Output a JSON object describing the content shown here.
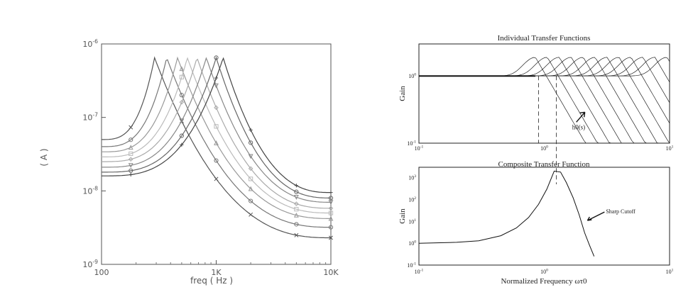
{
  "chart_data": [
    {
      "type": "line",
      "title": "",
      "xlabel": "freq ( Hz )",
      "ylabel": "( A )",
      "xscale": "log",
      "yscale": "log",
      "xlim": [
        100,
        10000
      ],
      "ylim": [
        1e-09,
        1e-06
      ],
      "xticks": [
        "100",
        "1K",
        "10K"
      ],
      "yticks": [
        "10^-9",
        "10^-8",
        "10^-7",
        "10^-6"
      ],
      "grid": false,
      "legend": "none",
      "series": [
        {
          "peak_freq": 290,
          "peak_value": 6.5e-07,
          "low_value": 5e-08,
          "high_value": 2.3e-09,
          "marker": "x",
          "color": "#555555"
        },
        {
          "peak_freq": 370,
          "peak_value": 6.5e-07,
          "low_value": 4e-08,
          "high_value": 3.2e-09,
          "marker": "o",
          "color": "#777777"
        },
        {
          "peak_freq": 460,
          "peak_value": 6.5e-07,
          "low_value": 3.4e-08,
          "high_value": 4.2e-09,
          "marker": "triangle",
          "color": "#999999"
        },
        {
          "peak_freq": 560,
          "peak_value": 6.5e-07,
          "low_value": 2.9e-08,
          "high_value": 5e-09,
          "marker": "square",
          "color": "#bbbbbb"
        },
        {
          "peak_freq": 680,
          "peak_value": 6.5e-07,
          "low_value": 2.5e-08,
          "high_value": 5.8e-09,
          "marker": "diamond",
          "color": "#aaaaaa"
        },
        {
          "peak_freq": 820,
          "peak_value": 6.5e-07,
          "low_value": 2.1e-08,
          "high_value": 7e-09,
          "marker": "triangle-down",
          "color": "#888888"
        },
        {
          "peak_freq": 1000,
          "peak_value": 6.5e-07,
          "low_value": 1.8e-08,
          "high_value": 8e-09,
          "marker": "circle",
          "color": "#666666"
        },
        {
          "peak_freq": 1150,
          "peak_value": 6.5e-07,
          "low_value": 1.6e-08,
          "high_value": 9.5e-09,
          "marker": "plus",
          "color": "#444444"
        }
      ],
      "marker_x": [
        180,
        500,
        1000,
        2000,
        5000,
        10000
      ]
    },
    {
      "type": "line",
      "title": "Individual Transfer Functions",
      "xlabel": "",
      "ylabel": "Gain",
      "xscale": "log",
      "yscale": "log",
      "xlim": [
        0.1,
        10
      ],
      "ylim": [
        0.1,
        3
      ],
      "xticks": [
        "10^-1",
        "10^0",
        "10^1"
      ],
      "yticks": [
        "10^-1",
        "10^0"
      ],
      "annotations": [
        {
          "text": "h0(s)",
          "x": 1.9,
          "y": 0.25
        }
      ],
      "dashed_markers_x": [
        0.9,
        1.25
      ],
      "series_count": 12
    },
    {
      "type": "line",
      "title": "Composite Transfer Function",
      "xlabel": "Normalized Frequency ωτ0",
      "ylabel": "Gain",
      "xscale": "log",
      "yscale": "log",
      "xlim": [
        0.1,
        10
      ],
      "ylim": [
        0.1,
        3000
      ],
      "xticks": [
        "10^-1",
        "10^0",
        "10^1"
      ],
      "yticks": [
        "10^-1",
        "10^0",
        "10^1",
        "10^2",
        "10^3"
      ],
      "annotations": [
        {
          "text": "Sharp Cutoff",
          "x": 2.1,
          "y": 20
        }
      ],
      "series": [
        {
          "x": [
            0.1,
            0.2,
            0.3,
            0.45,
            0.6,
            0.75,
            0.9,
            1.05,
            1.2,
            1.35,
            1.5,
            1.7,
            1.9,
            2.1,
            2.3,
            2.5
          ],
          "y": [
            1.0,
            1.1,
            1.3,
            2.2,
            5.0,
            15,
            60,
            300,
            2000,
            1800,
            600,
            120,
            20,
            3,
            0.8,
            0.25
          ]
        }
      ]
    }
  ]
}
